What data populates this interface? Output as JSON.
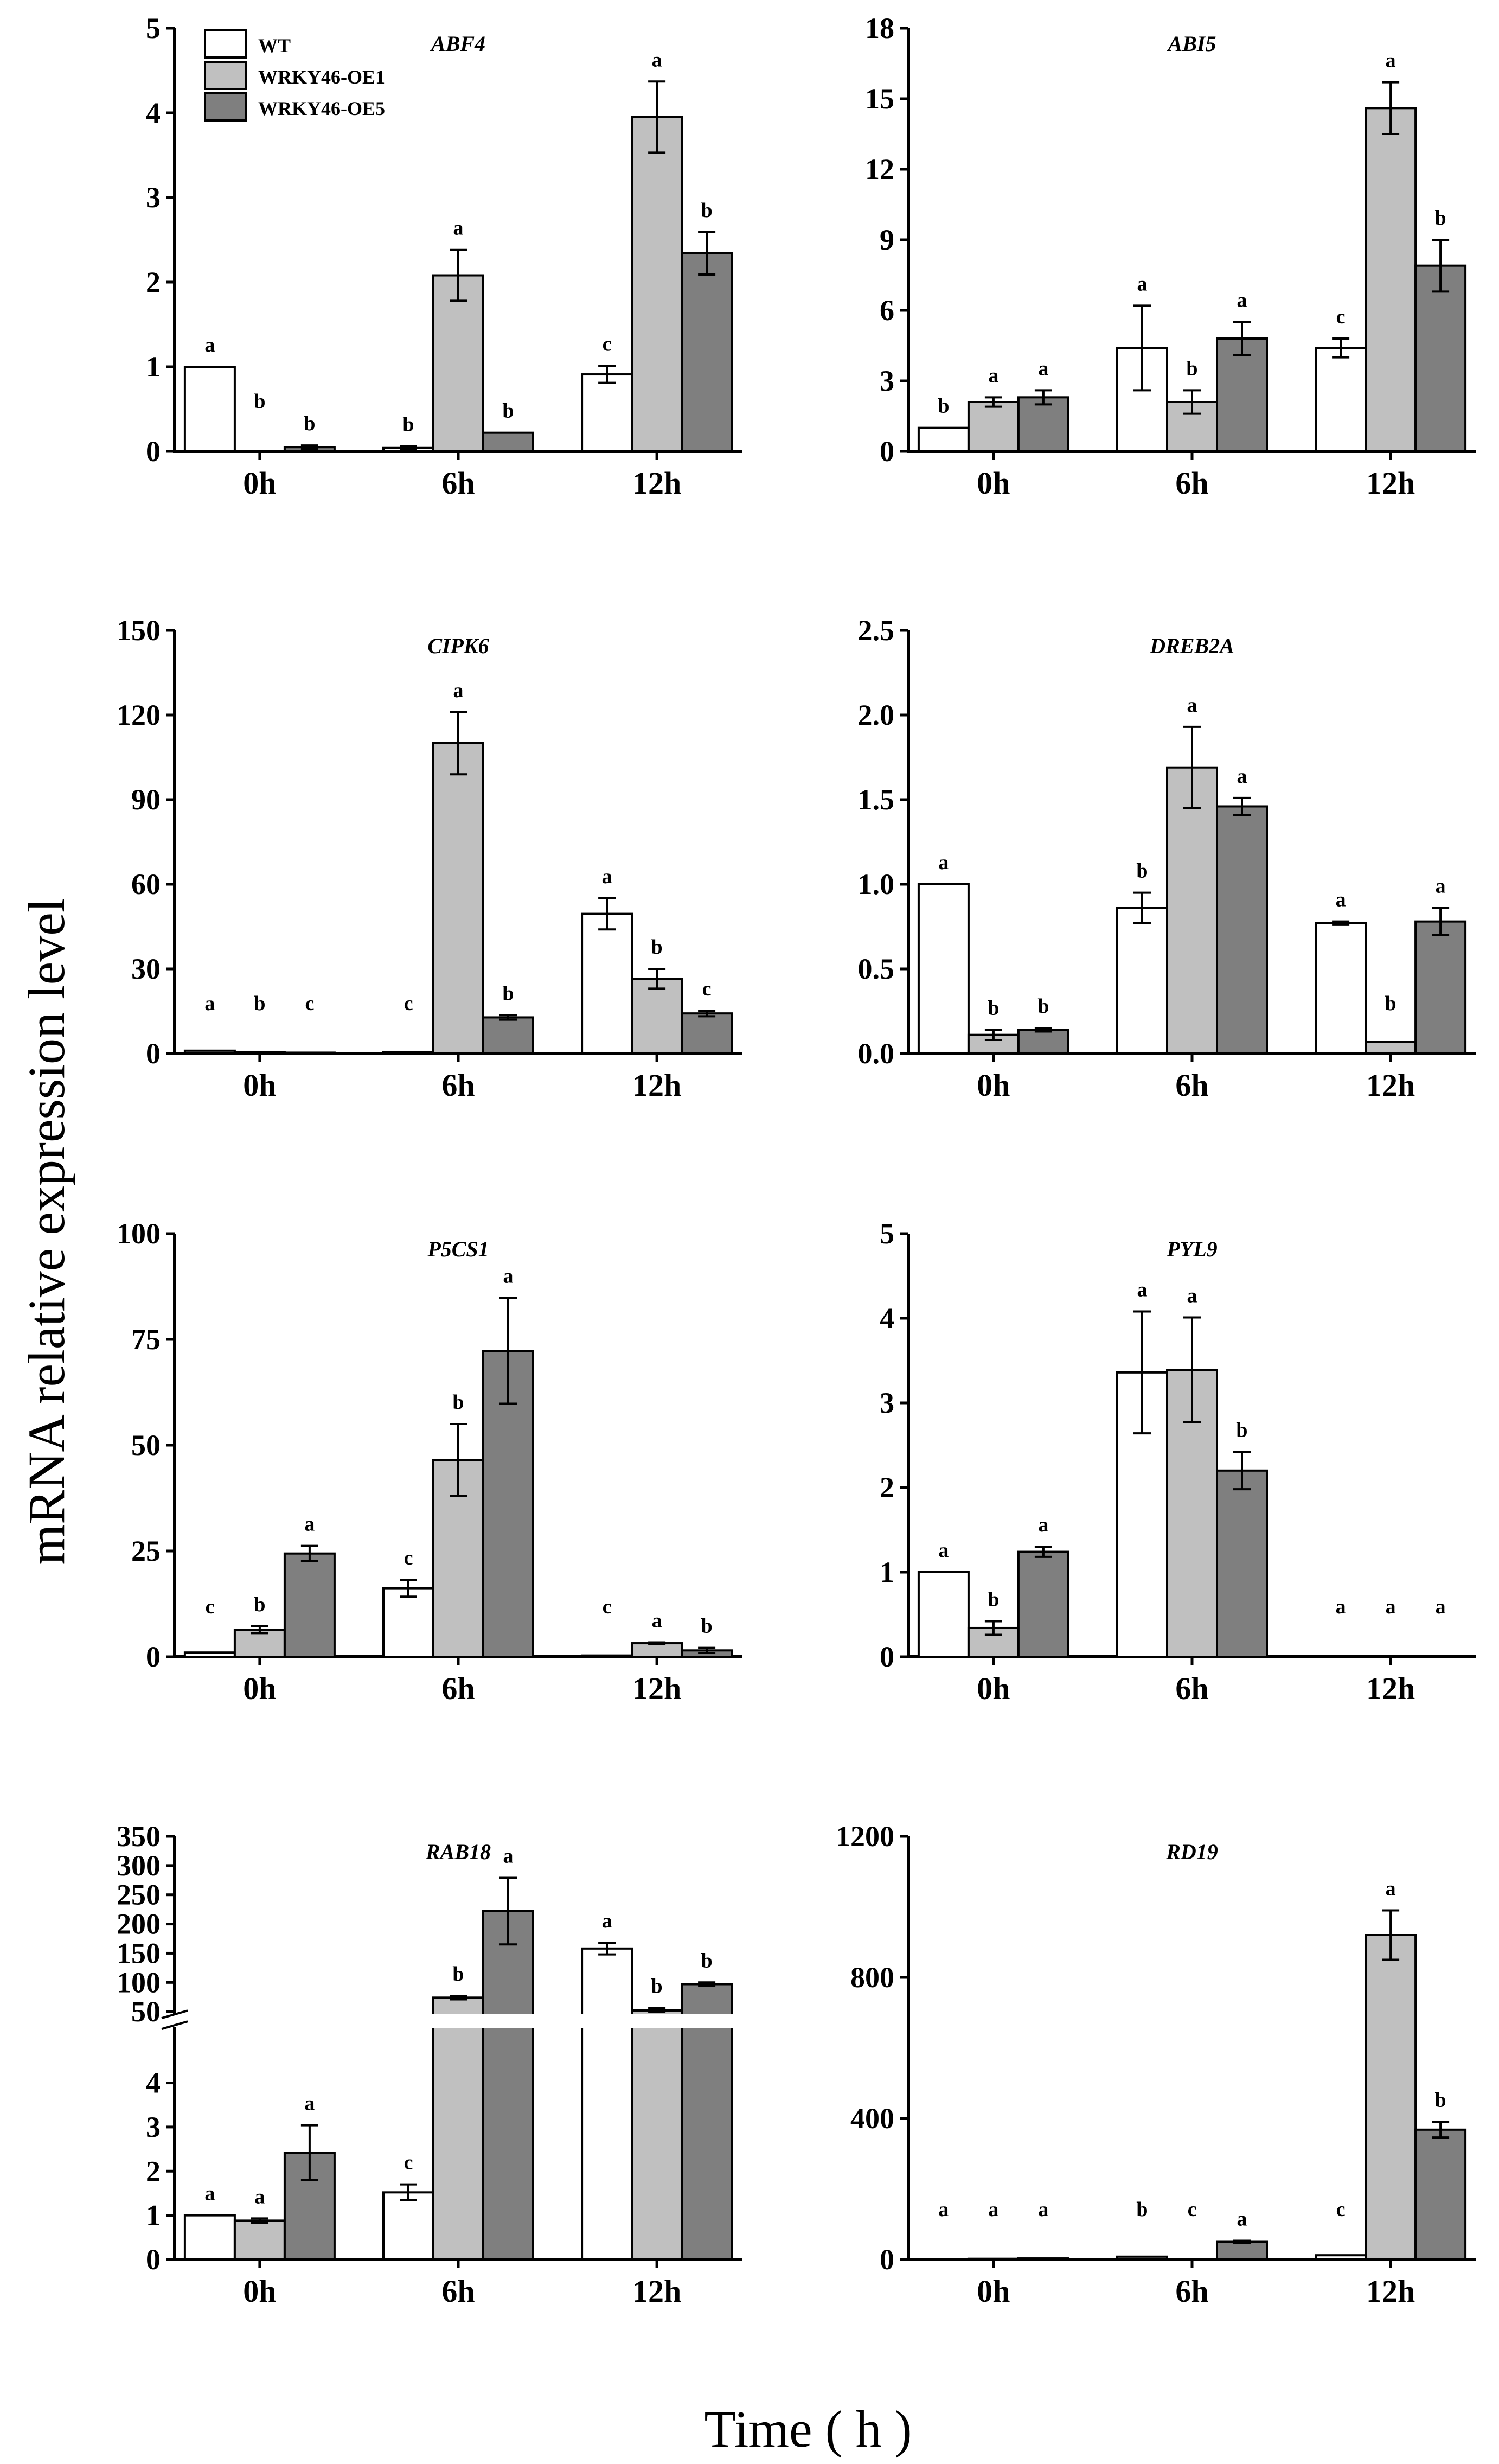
{
  "figure": {
    "ylabel": "mRNA relative expression level",
    "xlabel": "Time ( h )"
  },
  "legend": [
    {
      "name": "WT",
      "color": "#ffffff"
    },
    {
      "name": "WRKY46-OE1",
      "color": "#c0c0c0"
    },
    {
      "name": "WRKY46-OE5",
      "color": "#7f7f7f"
    }
  ],
  "chart_data": [
    {
      "type": "bar",
      "title": "ABF4",
      "categories": [
        "0h",
        "6h",
        "12h"
      ],
      "ylim": [
        0,
        5
      ],
      "yticks": [
        0,
        1,
        2,
        3,
        4,
        5
      ],
      "series": [
        {
          "name": "WT",
          "values": [
            1.0,
            0.04,
            0.91
          ],
          "errors": [
            0,
            0.02,
            0.1
          ],
          "letters": [
            "a",
            "b",
            "c"
          ]
        },
        {
          "name": "WRKY46-OE1",
          "values": [
            0.0,
            2.08,
            3.95
          ],
          "errors": [
            0,
            0.3,
            0.42
          ],
          "letters": [
            "b",
            "a",
            "a"
          ]
        },
        {
          "name": "WRKY46-OE5",
          "values": [
            0.05,
            0.22,
            2.34
          ],
          "errors": [
            0.02,
            0,
            0.25
          ],
          "letters": [
            "b",
            "b",
            "b"
          ]
        }
      ]
    },
    {
      "type": "bar",
      "title": "ABI5",
      "categories": [
        "0h",
        "6h",
        "12h"
      ],
      "ylim": [
        0,
        18
      ],
      "yticks": [
        0,
        3,
        6,
        9,
        12,
        15,
        18
      ],
      "series": [
        {
          "name": "WT",
          "values": [
            1.0,
            4.4,
            4.4
          ],
          "errors": [
            0,
            1.8,
            0.4
          ],
          "letters": [
            "b",
            "a",
            "c"
          ]
        },
        {
          "name": "WRKY46-OE1",
          "values": [
            2.1,
            2.1,
            14.6
          ],
          "errors": [
            0.2,
            0.5,
            1.1
          ],
          "letters": [
            "a",
            "b",
            "a"
          ]
        },
        {
          "name": "WRKY46-OE5",
          "values": [
            2.3,
            4.8,
            7.9
          ],
          "errors": [
            0.3,
            0.7,
            1.1
          ],
          "letters": [
            "a",
            "a",
            "b"
          ]
        }
      ]
    },
    {
      "type": "bar",
      "title": "CIPK6",
      "categories": [
        "0h",
        "6h",
        "12h"
      ],
      "ylim": [
        0,
        150
      ],
      "yticks": [
        0,
        30,
        60,
        90,
        120,
        150
      ],
      "series": [
        {
          "name": "WT",
          "values": [
            1.0,
            0.5,
            49.5
          ],
          "errors": [
            0,
            0,
            5.5
          ],
          "letters": [
            "a",
            "c",
            "a"
          ]
        },
        {
          "name": "WRKY46-OE1",
          "values": [
            0.5,
            110,
            26.5
          ],
          "errors": [
            0,
            11,
            3.5
          ],
          "letters": [
            "b",
            "a",
            "b"
          ]
        },
        {
          "name": "WRKY46-OE5",
          "values": [
            0.3,
            12.8,
            14.2
          ],
          "errors": [
            0,
            0.8,
            1
          ],
          "letters": [
            "c",
            "b",
            "c"
          ]
        }
      ]
    },
    {
      "type": "bar",
      "title": "DREB2A",
      "categories": [
        "0h",
        "6h",
        "12h"
      ],
      "ylim": [
        0,
        2.5
      ],
      "yticks": [
        "0.0",
        "0.5",
        "1.0",
        "1.5",
        "2.0",
        "2.5"
      ],
      "series": [
        {
          "name": "WT",
          "values": [
            1.0,
            0.86,
            0.77
          ],
          "errors": [
            0,
            0.09,
            0.01
          ],
          "letters": [
            "a",
            "b",
            "a"
          ]
        },
        {
          "name": "WRKY46-OE1",
          "values": [
            0.11,
            1.69,
            0.07
          ],
          "errors": [
            0.03,
            0.24,
            0
          ],
          "letters": [
            "b",
            "a",
            "b"
          ]
        },
        {
          "name": "WRKY46-OE5",
          "values": [
            0.14,
            1.46,
            0.78
          ],
          "errors": [
            0.01,
            0.05,
            0.08
          ],
          "letters": [
            "b",
            "a",
            "a"
          ]
        }
      ]
    },
    {
      "type": "bar",
      "title": "P5CS1",
      "categories": [
        "0h",
        "6h",
        "12h"
      ],
      "ylim": [
        0,
        100
      ],
      "yticks": [
        0,
        25,
        50,
        75,
        100
      ],
      "series": [
        {
          "name": "WT",
          "values": [
            1.0,
            16.2,
            0.3
          ],
          "errors": [
            0,
            2,
            0
          ],
          "letters": [
            "c",
            "c",
            "c"
          ]
        },
        {
          "name": "WRKY46-OE1",
          "values": [
            6.4,
            46.5,
            3.2
          ],
          "errors": [
            0.8,
            8.5,
            0.2
          ],
          "letters": [
            "b",
            "b",
            "a"
          ]
        },
        {
          "name": "WRKY46-OE5",
          "values": [
            24.4,
            72.3,
            1.5
          ],
          "errors": [
            1.8,
            12.5,
            0.6
          ],
          "letters": [
            "a",
            "a",
            "b"
          ]
        }
      ]
    },
    {
      "type": "bar",
      "title": "PYL9",
      "categories": [
        "0h",
        "6h",
        "12h"
      ],
      "ylim": [
        0,
        5
      ],
      "yticks": [
        0,
        1,
        2,
        3,
        4,
        5
      ],
      "series": [
        {
          "name": "WT",
          "values": [
            1.0,
            3.36,
            0.01
          ],
          "errors": [
            0,
            0.72,
            0
          ],
          "letters": [
            "a",
            "a",
            "a"
          ]
        },
        {
          "name": "WRKY46-OE1",
          "values": [
            0.34,
            3.39,
            0.0
          ],
          "errors": [
            0.08,
            0.62,
            0
          ],
          "letters": [
            "b",
            "a",
            "a"
          ]
        },
        {
          "name": "WRKY46-OE5",
          "values": [
            1.24,
            2.2,
            0.0
          ],
          "errors": [
            0.06,
            0.22,
            0
          ],
          "letters": [
            "a",
            "b",
            "a"
          ]
        }
      ]
    },
    {
      "type": "bar",
      "title": "RAB18",
      "categories": [
        "0h",
        "6h",
        "12h"
      ],
      "broken_axis": {
        "lower": [
          0,
          5
        ],
        "upper": [
          50,
          350
        ]
      },
      "yticks_lower": [
        0,
        1,
        2,
        3,
        4
      ],
      "yticks_upper": [
        50,
        100,
        150,
        200,
        250,
        300,
        350
      ],
      "series": [
        {
          "name": "WT",
          "values": [
            1.0,
            1.52,
            158
          ],
          "errors": [
            0,
            0.18,
            10
          ],
          "letters": [
            "a",
            "c",
            "a"
          ]
        },
        {
          "name": "WRKY46-OE1",
          "values": [
            0.88,
            74,
            52
          ],
          "errors": [
            0.05,
            3,
            4
          ],
          "letters": [
            "a",
            "b",
            "b"
          ]
        },
        {
          "name": "WRKY46-OE5",
          "values": [
            2.42,
            222,
            97
          ],
          "errors": [
            0.62,
            57,
            3
          ],
          "letters": [
            "a",
            "a",
            "b"
          ]
        }
      ]
    },
    {
      "type": "bar",
      "title": "RD19",
      "categories": [
        "0h",
        "6h",
        "12h"
      ],
      "ylim": [
        0,
        1200
      ],
      "yticks": [
        0,
        400,
        800,
        1200
      ],
      "series": [
        {
          "name": "WT",
          "values": [
            1.0,
            8,
            12
          ],
          "errors": [
            0,
            0,
            0
          ],
          "letters": [
            "a",
            "b",
            "c"
          ]
        },
        {
          "name": "WRKY46-OE1",
          "values": [
            2,
            0,
            920
          ],
          "errors": [
            0,
            0,
            70
          ],
          "letters": [
            "a",
            "c",
            "a"
          ]
        },
        {
          "name": "WRKY46-OE5",
          "values": [
            3,
            50,
            368
          ],
          "errors": [
            0,
            3,
            22
          ],
          "letters": [
            "a",
            "a",
            "b"
          ]
        }
      ]
    }
  ]
}
